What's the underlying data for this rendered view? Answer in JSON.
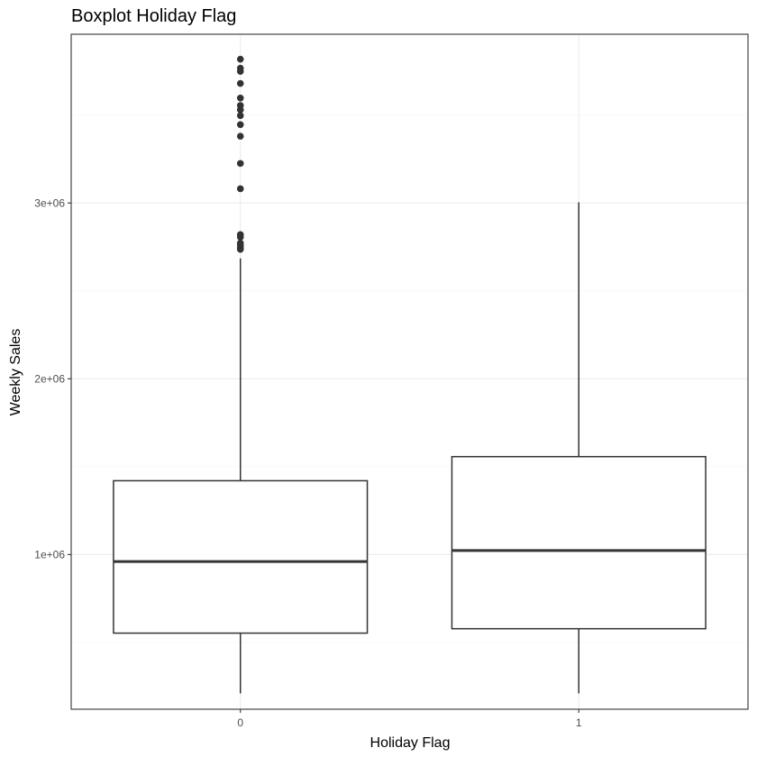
{
  "chart_data": {
    "type": "boxplot",
    "title": "Boxplot Holiday Flag",
    "xlabel": "Holiday Flag",
    "ylabel": "Weekly Sales",
    "categories": [
      "0",
      "1"
    ],
    "ylim": [
      120000,
      3960000
    ],
    "y_ticks": [
      {
        "value": 1000000,
        "label": "1e+06"
      },
      {
        "value": 2000000,
        "label": "2e+06"
      },
      {
        "value": 3000000,
        "label": "3e+06"
      }
    ],
    "y_minor_ticks": [
      500000,
      1500000,
      2500000,
      3500000
    ],
    "grid": true,
    "boxes": [
      {
        "category": "0",
        "lower_whisker": 210000,
        "q1": 553000,
        "median": 960000,
        "q3": 1420000,
        "upper_whisker": 2685000,
        "outliers": [
          3818000,
          3767000,
          3749000,
          3680000,
          3597000,
          3555000,
          3530000,
          3497000,
          3446000,
          3380000,
          3225000,
          3081000,
          2820000,
          2806000,
          2772000,
          2760000,
          2745000,
          2736000
        ]
      },
      {
        "category": "1",
        "lower_whisker": 210000,
        "q1": 578000,
        "median": 1023000,
        "q3": 1557000,
        "upper_whisker": 3004000,
        "outliers": []
      }
    ],
    "colors": {
      "box_stroke": "#333333",
      "box_fill": "#ffffff",
      "grid_major": "#ebebeb",
      "grid_minor": "#f5f5f5",
      "panel_border": "#333333",
      "outlier": "#333333"
    }
  }
}
